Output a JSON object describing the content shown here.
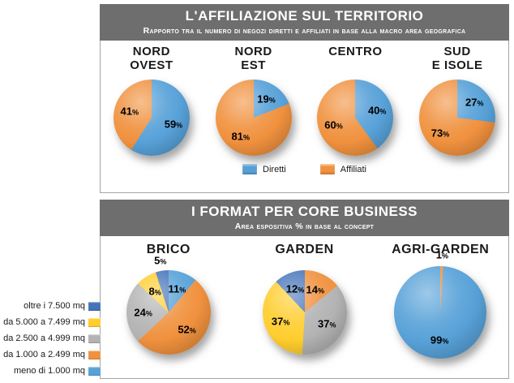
{
  "colors": {
    "header_bg": "#6E6E6E",
    "header_text": "#FFFFFF",
    "panel_border": "#A5A5A5",
    "diretti_blue": "#57A1D8",
    "affiliati_orange": "#F0913E",
    "blue_dark": "#4573B9",
    "yellow": "#FFCD2E",
    "gray": "#B3B3B3"
  },
  "panel_affiliazione": {
    "title": "L'AFFILIAZIONE SUL TERRITORIO",
    "subtitle": "Rapporto tra il numero di negozi diretti e affiliati in base alla macro area geografica",
    "legend": [
      {
        "label": "Diretti",
        "color": "#57A1D8"
      },
      {
        "label": "Affiliati",
        "color": "#F0913E"
      }
    ]
  },
  "panel_format": {
    "title": "I FORMAT PER CORE BUSINESS",
    "subtitle": "Area espositiva % in base al concept",
    "legend": [
      {
        "label": "oltre i 7.500 mq",
        "color": "#4573B9"
      },
      {
        "label": "da 5.000 a 7.499 mq",
        "color": "#FFCD2E"
      },
      {
        "label": "da 2.500 a 4.999 mq",
        "color": "#B3B3B3"
      },
      {
        "label": "da 1.000 a 2.499 mq",
        "color": "#F0913E"
      },
      {
        "label": "meno di 1.000 mq",
        "color": "#57A1D8"
      }
    ]
  },
  "chart_data": [
    {
      "type": "pie",
      "title": "NORD\nOVEST",
      "group": "affiliazione",
      "legend_position": "bottom",
      "slices": [
        {
          "label": "Diretti",
          "value": 59,
          "color": "#57A1D8"
        },
        {
          "label": "Affiliati",
          "value": 41,
          "color": "#F0913E"
        }
      ]
    },
    {
      "type": "pie",
      "title": "NORD\nEST",
      "group": "affiliazione",
      "legend_position": "bottom",
      "slices": [
        {
          "label": "Diretti",
          "value": 19,
          "color": "#57A1D8"
        },
        {
          "label": "Affiliati",
          "value": 81,
          "color": "#F0913E"
        }
      ]
    },
    {
      "type": "pie",
      "title": "CENTRO",
      "group": "affiliazione",
      "legend_position": "bottom",
      "slices": [
        {
          "label": "Diretti",
          "value": 40,
          "color": "#57A1D8"
        },
        {
          "label": "Affiliati",
          "value": 60,
          "color": "#F0913E"
        }
      ]
    },
    {
      "type": "pie",
      "title": "SUD\nE ISOLE",
      "group": "affiliazione",
      "legend_position": "bottom",
      "slices": [
        {
          "label": "Diretti",
          "value": 27,
          "color": "#57A1D8"
        },
        {
          "label": "Affiliati",
          "value": 73,
          "color": "#F0913E"
        }
      ]
    },
    {
      "type": "pie",
      "title": "BRICO",
      "group": "format",
      "legend_position": "left",
      "slices": [
        {
          "label": "meno di 1.000 mq",
          "value": 11,
          "color": "#57A1D8"
        },
        {
          "label": "da 1.000 a 2.499 mq",
          "value": 52,
          "color": "#F0913E"
        },
        {
          "label": "da 2.500 a 4.999 mq",
          "value": 24,
          "color": "#B3B3B3"
        },
        {
          "label": "da 5.000 a 7.499 mq",
          "value": 8,
          "color": "#FFCD2E"
        },
        {
          "label": "oltre i 7.500 mq",
          "value": 5,
          "color": "#4573B9"
        }
      ]
    },
    {
      "type": "pie",
      "title": "GARDEN",
      "group": "format",
      "legend_position": "left",
      "slices": [
        {
          "label": "da 1.000 a 2.499 mq",
          "value": 14,
          "color": "#F0913E"
        },
        {
          "label": "da 2.500 a 4.999 mq",
          "value": 37,
          "color": "#B3B3B3"
        },
        {
          "label": "da 5.000 a 7.499 mq",
          "value": 37,
          "color": "#FFCD2E"
        },
        {
          "label": "oltre i 7.500 mq",
          "value": 12,
          "color": "#4573B9"
        }
      ]
    },
    {
      "type": "pie",
      "title": "AGRI-GARDEN",
      "group": "format",
      "legend_position": "left",
      "slices": [
        {
          "label": "da 1.000 a 2.499 mq",
          "value": 1,
          "color": "#F0913E"
        },
        {
          "label": "meno di 1.000 mq",
          "value": 99,
          "color": "#57A1D8"
        }
      ]
    }
  ]
}
